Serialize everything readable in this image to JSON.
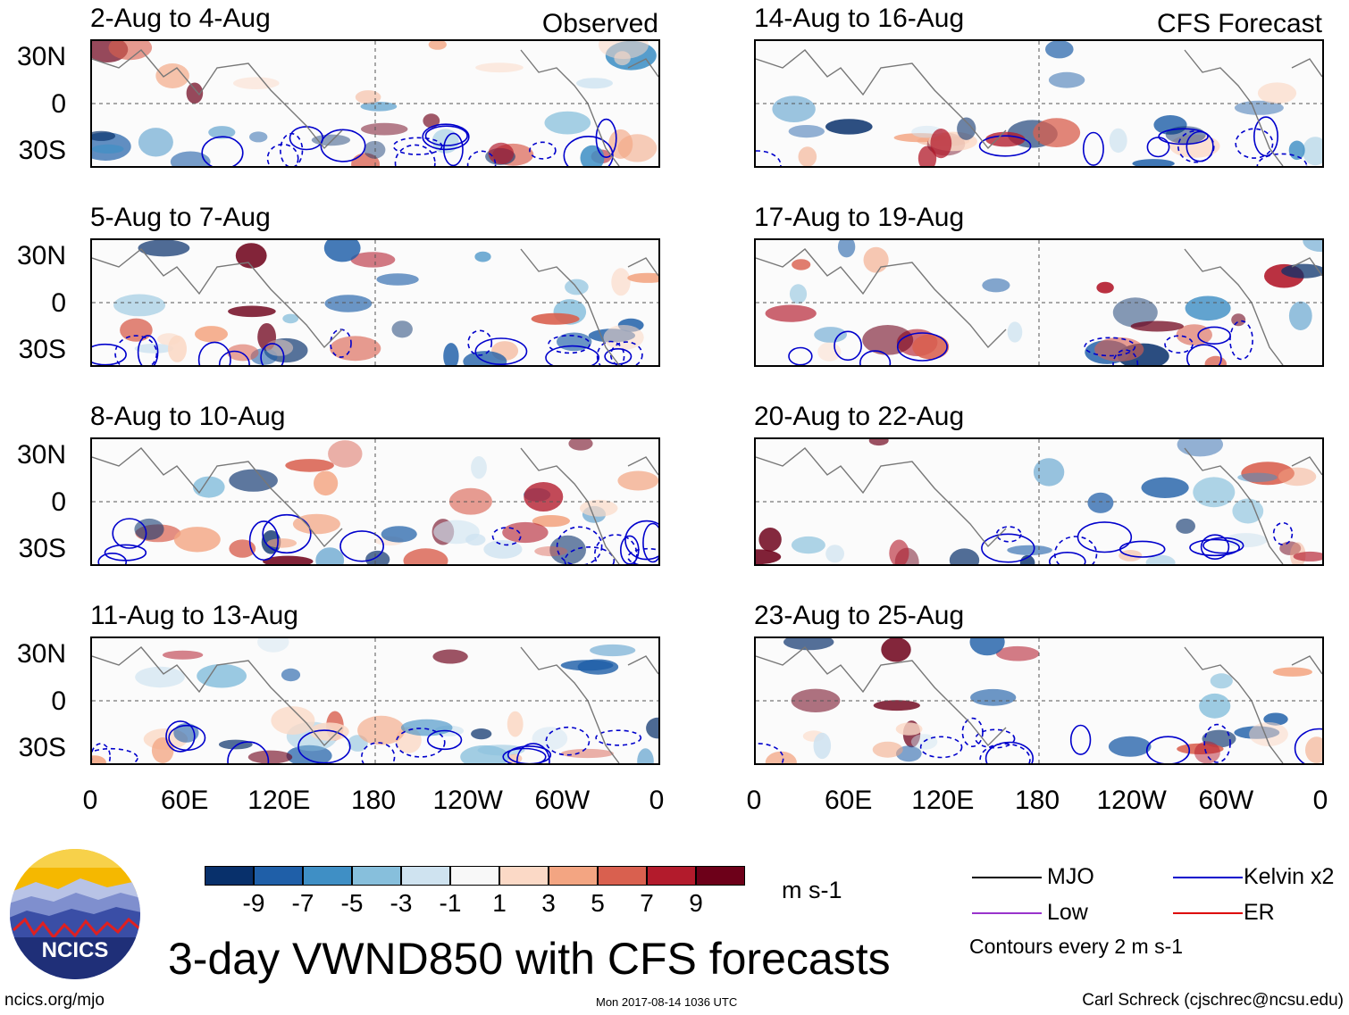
{
  "panels": {
    "left": [
      {
        "title": "2-Aug to 4-Aug",
        "source": "Observed"
      },
      {
        "title": "5-Aug to 7-Aug",
        "source": ""
      },
      {
        "title": "8-Aug to 10-Aug",
        "source": ""
      },
      {
        "title": "11-Aug to 13-Aug",
        "source": ""
      }
    ],
    "right": [
      {
        "title": "14-Aug to 16-Aug",
        "source": "CFS Forecast"
      },
      {
        "title": "17-Aug to 19-Aug",
        "source": ""
      },
      {
        "title": "20-Aug to 22-Aug",
        "source": ""
      },
      {
        "title": "23-Aug to 25-Aug",
        "source": ""
      }
    ]
  },
  "lat_labels": [
    "30N",
    "0",
    "30S"
  ],
  "lon_labels": [
    "0",
    "60E",
    "120E",
    "180",
    "120W",
    "60W",
    "0"
  ],
  "colorbar": {
    "colors": [
      "#08306b",
      "#1f5fa8",
      "#3f8fc5",
      "#87bfdc",
      "#cfe3f0",
      "#f8f8f8",
      "#fbd9c6",
      "#f3a582",
      "#d9604f",
      "#b31b2c",
      "#6d0019"
    ],
    "tick_labels": [
      "-9",
      "-7",
      "-5",
      "-3",
      "-1",
      "1",
      "3",
      "5",
      "7",
      "9"
    ],
    "units": "m s-1"
  },
  "legend": {
    "items": [
      {
        "label": "MJO",
        "color": "#000000"
      },
      {
        "label": "Kelvin x2",
        "color": "#0000cc"
      },
      {
        "label": "Low",
        "color": "#9933cc"
      },
      {
        "label": "ER",
        "color": "#dd0000"
      }
    ],
    "note": "Contours every 2 m s-1"
  },
  "logo_text": "NCICS",
  "main_title": "3-day VWND850 with CFS forecasts",
  "footer": {
    "left": "ncics.org/mjo",
    "center": "Mon 2017-08-14 1036 UTC",
    "right": "Carl Schreck (cjschrec@ncsu.edu)"
  }
}
